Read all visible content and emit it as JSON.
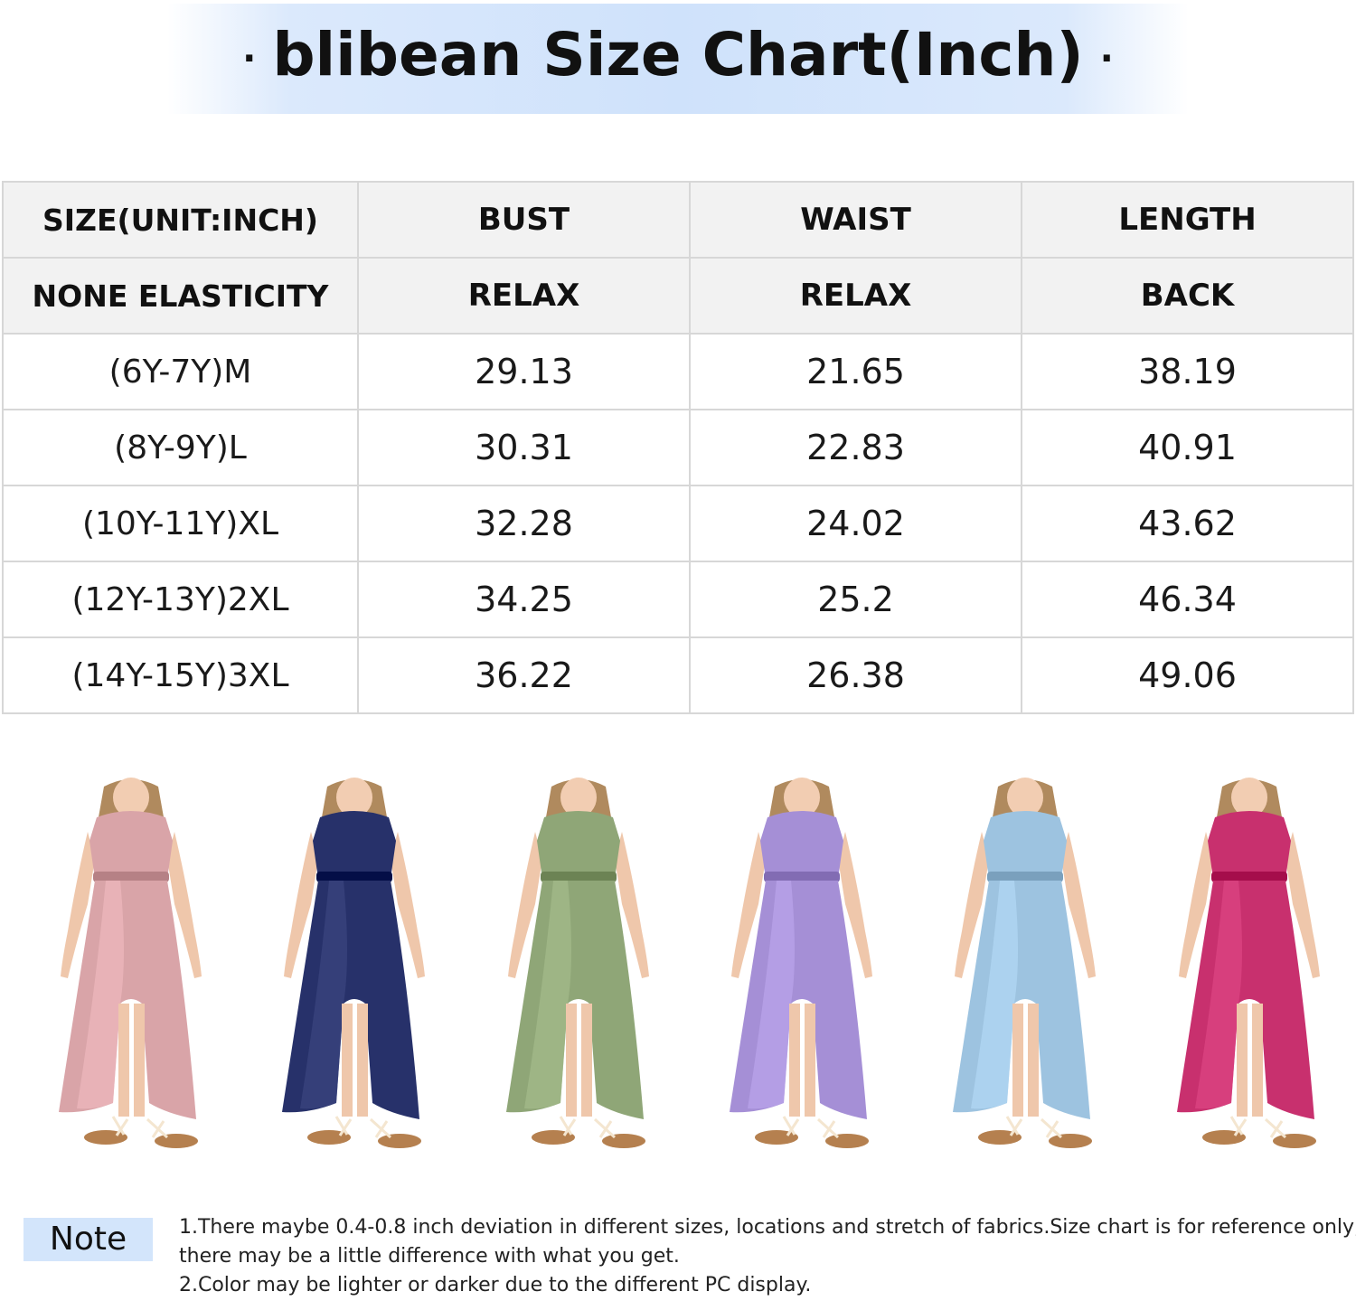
{
  "header": {
    "title": "blibean Size Chart(Inch)",
    "dot": "·"
  },
  "table": {
    "header_row1": [
      "SIZE(UNIT:INCH)",
      "BUST",
      "WAIST",
      "LENGTH"
    ],
    "header_row2": [
      "NONE ELASTICITY",
      "RELAX",
      "RELAX",
      "BACK"
    ],
    "rows": [
      [
        "(6Y-7Y)M",
        "29.13",
        "21.65",
        "38.19"
      ],
      [
        "(8Y-9Y)L",
        "30.31",
        "22.83",
        "40.91"
      ],
      [
        "(10Y-11Y)XL",
        "32.28",
        "24.02",
        "43.62"
      ],
      [
        "(12Y-13Y)2XL",
        "34.25",
        "25.2",
        "46.34"
      ],
      [
        "(14Y-15Y)3XL",
        "36.22",
        "26.38",
        "49.06"
      ]
    ]
  },
  "dresses": [
    {
      "color": "#d9a4a8"
    },
    {
      "color": "#27316a"
    },
    {
      "color": "#8fa677"
    },
    {
      "color": "#a58fd6"
    },
    {
      "color": "#9dc3e0"
    },
    {
      "color": "#c8306e"
    }
  ],
  "note": {
    "label": "Note",
    "line1": "1.There maybe 0.4-0.8 inch deviation in different sizes, locations and  stretch of fabrics.Size chart is for reference only,",
    "line2": "there may be a little difference with what you get.",
    "line3": "2.Color may be lighter or darker due to the different PC display."
  }
}
